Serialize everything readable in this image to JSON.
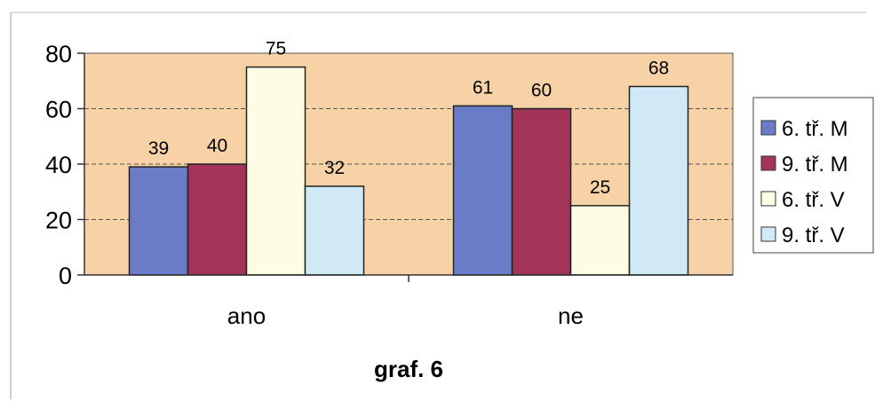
{
  "caption": "graf. 6",
  "colors": {
    "plot_bg": "#f7d2a6",
    "series": [
      "#6b7cc6",
      "#a33358",
      "#fdfde4",
      "#cfe9f7"
    ]
  },
  "chart_data": {
    "type": "bar",
    "title": "graf. 6",
    "categories": [
      "ano",
      "ne"
    ],
    "series": [
      {
        "name": "6. tř. M",
        "values": [
          39,
          61
        ]
      },
      {
        "name": "9. tř. M",
        "values": [
          40,
          60
        ]
      },
      {
        "name": "6. tř. V",
        "values": [
          75,
          25
        ]
      },
      {
        "name": "9. tř. V",
        "values": [
          32,
          68
        ]
      }
    ],
    "ylim": [
      0,
      80
    ],
    "yticks": [
      0,
      20,
      40,
      60,
      80
    ],
    "grid": true,
    "legend": "right",
    "data_labels": true
  }
}
